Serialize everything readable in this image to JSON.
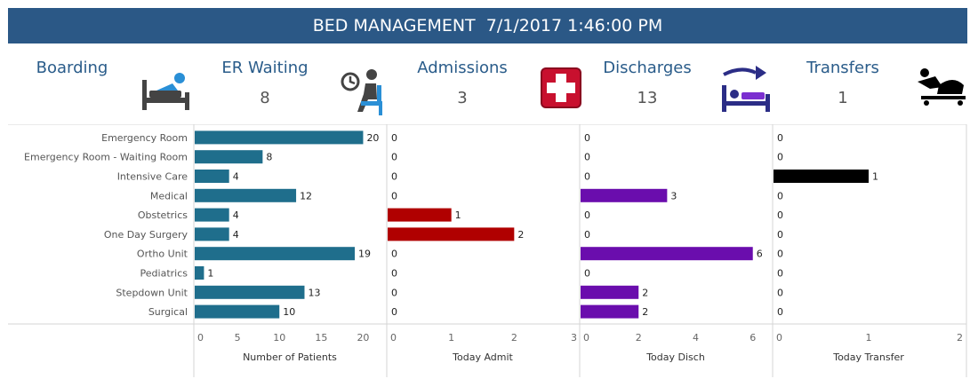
{
  "header": {
    "title": "BED MANAGEMENT  7/1/2017 1:46:00 PM"
  },
  "kpis": [
    {
      "label": "Boarding",
      "value": "",
      "icon": "patient-in-bed-icon"
    },
    {
      "label": "ER Waiting",
      "value": "8",
      "icon": "waiting-room-clock-icon"
    },
    {
      "label": "Admissions",
      "value": "3",
      "icon": "red-cross-icon"
    },
    {
      "label": "Discharges",
      "value": "13",
      "icon": "bed-exit-arrow-icon"
    },
    {
      "label": "Transfers",
      "value": "1",
      "icon": "stretcher-icon"
    }
  ],
  "colors": {
    "header": "#2b5886",
    "patients": "#1f6e8c",
    "admit": "#b00000",
    "disch": "#6a0dad",
    "transfer": "#000000",
    "kpi_label": "#2a5c8a"
  },
  "chart_data": {
    "type": "bar",
    "orientation": "horizontal",
    "categories": [
      "Emergency Room",
      "Emergency Room - Waiting Room",
      "Intensive Care",
      "Medical",
      "Obstetrics",
      "One Day Surgery",
      "Ortho Unit",
      "Pediatrics",
      "Stepdown Unit",
      "Surgical"
    ],
    "series": [
      {
        "name": "Number of Patients",
        "values": [
          20,
          8,
          4,
          12,
          4,
          4,
          19,
          1,
          13,
          10
        ],
        "ticks": [
          0,
          5,
          10,
          15,
          20
        ],
        "xlim": [
          0,
          22.5
        ],
        "color": "#1f6e8c"
      },
      {
        "name": "Today Admit",
        "values": [
          0,
          0,
          0,
          0,
          1,
          2,
          0,
          0,
          0,
          0
        ],
        "ticks": [
          0,
          1,
          2,
          3
        ],
        "xlim": [
          0,
          3
        ],
        "color": "#b00000"
      },
      {
        "name": "Today Disch",
        "values": [
          0,
          0,
          0,
          3,
          0,
          0,
          6,
          0,
          2,
          2
        ],
        "ticks": [
          0,
          2,
          4,
          6
        ],
        "xlim": [
          0,
          6.6
        ],
        "color": "#6a0dad"
      },
      {
        "name": "Today Transfer",
        "values": [
          0,
          0,
          1,
          0,
          0,
          0,
          0,
          0,
          0,
          0
        ],
        "ticks": [
          0,
          1,
          2
        ],
        "xlim": [
          0,
          2
        ],
        "color": "#000000"
      }
    ],
    "grid": false
  }
}
